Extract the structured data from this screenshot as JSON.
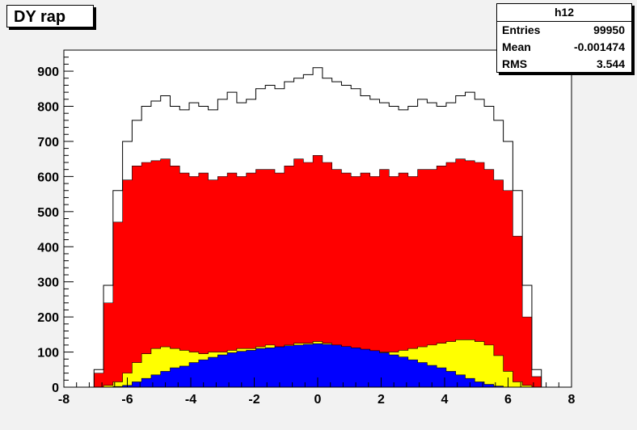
{
  "title": "DY rap",
  "stats": {
    "name": "h12",
    "rows": [
      {
        "label": "Entries",
        "value": "99950"
      },
      {
        "label": "Mean",
        "value": "-0.001474"
      },
      {
        "label": "RMS",
        "value": "3.544"
      }
    ]
  },
  "colors": {
    "total": "#ffffff",
    "red": "#ff0000",
    "yellow": "#ffff00",
    "blue": "#0000ff",
    "frame": "#000000"
  },
  "chart_data": {
    "type": "area",
    "xlim": [
      -8,
      8
    ],
    "ylim": [
      0,
      960
    ],
    "xticks": [
      -8,
      -6,
      -4,
      -2,
      0,
      2,
      4,
      6,
      8
    ],
    "yticks": [
      0,
      100,
      200,
      300,
      400,
      500,
      600,
      700,
      800,
      900
    ],
    "series": [
      {
        "color": "#ffffff",
        "x": [
          -7.2,
          -6.9,
          -6.6,
          -6.3,
          -6.0,
          -5.7,
          -5.4,
          -5.1,
          -4.8,
          -4.5,
          -4.2,
          -3.9,
          -3.6,
          -3.3,
          -3.0,
          -2.7,
          -2.4,
          -2.1,
          -1.8,
          -1.5,
          -1.2,
          -0.9,
          -0.6,
          -0.3,
          0.0,
          0.3,
          0.6,
          0.9,
          1.2,
          1.5,
          1.8,
          2.1,
          2.4,
          2.7,
          3.0,
          3.3,
          3.6,
          3.9,
          4.2,
          4.5,
          4.8,
          5.1,
          5.4,
          5.7,
          6.0,
          6.3,
          6.6,
          6.9,
          7.2
        ],
        "values": [
          0,
          50,
          290,
          560,
          700,
          760,
          800,
          815,
          830,
          800,
          790,
          810,
          800,
          790,
          820,
          840,
          810,
          820,
          850,
          860,
          850,
          870,
          880,
          890,
          910,
          880,
          870,
          860,
          850,
          830,
          820,
          810,
          800,
          790,
          800,
          820,
          810,
          800,
          810,
          830,
          840,
          820,
          800,
          760,
          700,
          560,
          290,
          50,
          0
        ]
      },
      {
        "color": "#ff0000",
        "x": [
          -7.2,
          -6.9,
          -6.6,
          -6.3,
          -6.0,
          -5.7,
          -5.4,
          -5.1,
          -4.8,
          -4.5,
          -4.2,
          -3.9,
          -3.6,
          -3.3,
          -3.0,
          -2.7,
          -2.4,
          -2.1,
          -1.8,
          -1.5,
          -1.2,
          -0.9,
          -0.6,
          -0.3,
          0.0,
          0.3,
          0.6,
          0.9,
          1.2,
          1.5,
          1.8,
          2.1,
          2.4,
          2.7,
          3.0,
          3.3,
          3.6,
          3.9,
          4.2,
          4.5,
          4.8,
          5.1,
          5.4,
          5.7,
          6.0,
          6.3,
          6.6,
          6.9,
          7.2
        ],
        "values": [
          0,
          40,
          240,
          470,
          590,
          630,
          640,
          645,
          650,
          630,
          610,
          600,
          610,
          590,
          600,
          610,
          600,
          610,
          620,
          620,
          610,
          630,
          650,
          640,
          660,
          640,
          620,
          610,
          600,
          610,
          600,
          620,
          600,
          610,
          600,
          620,
          620,
          630,
          640,
          650,
          645,
          640,
          620,
          590,
          560,
          430,
          200,
          30,
          0
        ]
      },
      {
        "color": "#ffff00",
        "x": [
          -7.2,
          -6.9,
          -6.6,
          -6.3,
          -6.0,
          -5.7,
          -5.4,
          -5.1,
          -4.8,
          -4.5,
          -4.2,
          -3.9,
          -3.6,
          -3.3,
          -3.0,
          -2.7,
          -2.4,
          -2.1,
          -1.8,
          -1.5,
          -1.2,
          -0.9,
          -0.6,
          -0.3,
          0.0,
          0.3,
          0.6,
          0.9,
          1.2,
          1.5,
          1.8,
          2.1,
          2.4,
          2.7,
          3.0,
          3.3,
          3.6,
          3.9,
          4.2,
          4.5,
          4.8,
          5.1,
          5.4,
          5.7,
          6.0,
          6.3,
          6.6,
          6.9,
          7.2
        ],
        "values": [
          0,
          0,
          5,
          15,
          40,
          70,
          95,
          110,
          115,
          110,
          105,
          100,
          95,
          100,
          100,
          105,
          110,
          110,
          115,
          120,
          115,
          120,
          125,
          125,
          130,
          125,
          120,
          115,
          110,
          105,
          100,
          100,
          100,
          105,
          110,
          115,
          120,
          125,
          130,
          135,
          135,
          130,
          120,
          90,
          45,
          15,
          5,
          0,
          0
        ]
      },
      {
        "color": "#0000ff",
        "x": [
          -7.2,
          -6.9,
          -6.6,
          -6.3,
          -6.0,
          -5.7,
          -5.4,
          -5.1,
          -4.8,
          -4.5,
          -4.2,
          -3.9,
          -3.6,
          -3.3,
          -3.0,
          -2.7,
          -2.4,
          -2.1,
          -1.8,
          -1.5,
          -1.2,
          -0.9,
          -0.6,
          -0.3,
          0.0,
          0.3,
          0.6,
          0.9,
          1.2,
          1.5,
          1.8,
          2.1,
          2.4,
          2.7,
          3.0,
          3.3,
          3.6,
          3.9,
          4.2,
          4.5,
          4.8,
          5.1,
          5.4,
          5.7,
          6.0,
          6.3,
          6.6,
          6.9,
          7.2
        ],
        "values": [
          0,
          0,
          0,
          2,
          5,
          15,
          25,
          35,
          45,
          55,
          60,
          70,
          78,
          85,
          92,
          98,
          102,
          105,
          110,
          112,
          115,
          118,
          120,
          122,
          124,
          122,
          120,
          116,
          112,
          108,
          104,
          98,
          92,
          86,
          78,
          70,
          62,
          55,
          45,
          35,
          25,
          15,
          8,
          3,
          0,
          0,
          0,
          0,
          0
        ]
      }
    ]
  }
}
